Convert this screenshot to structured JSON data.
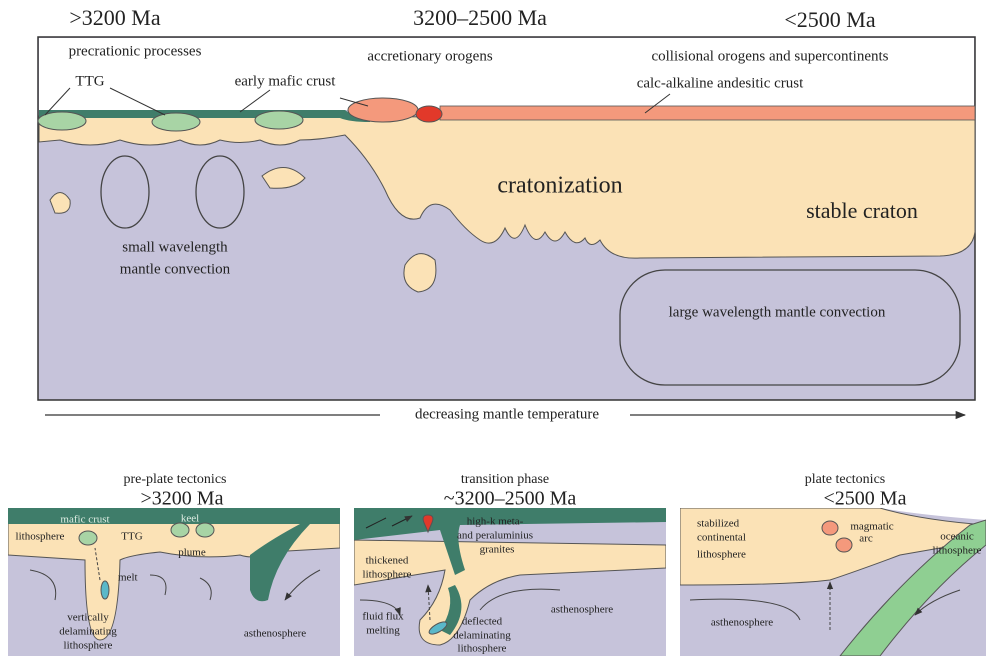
{
  "top_panel": {
    "eras": [
      ">3200 Ma",
      "3200–2500 Ma",
      "<2500 Ma"
    ],
    "labels": {
      "precratonic": "precrationic processes",
      "ttg": "TTG",
      "early_mafic": "early mafic crust",
      "accretionary": "accretionary orogens",
      "collisional": "collisional orogens and supercontinents",
      "calc_alkaline": "calc-alkaline andesitic crust",
      "cratonization": "cratonization",
      "stable_craton": "stable craton",
      "small_convection": [
        "small wavelength",
        "mantle convection"
      ],
      "large_convection": "large wavelength mantle convection"
    },
    "axis_label": "decreasing mantle temperature"
  },
  "bottom_panels": [
    {
      "title": "pre-plate tectonics",
      "age": ">3200 Ma",
      "labels": [
        "mafic crust",
        "keel",
        "lithosphere",
        "TTG",
        "plume",
        "melt",
        "vertically",
        "delaminating",
        "lithosphere",
        "asthenosphere"
      ]
    },
    {
      "title": "transition phase",
      "age": "~3200–2500 Ma",
      "labels": [
        "high-k meta-",
        "and peraluminius",
        "granites",
        "thickened",
        "lithosphere",
        "fluid flux",
        "melting",
        "deflected",
        "delaminating",
        "lithosphere",
        "asthenosphere"
      ]
    },
    {
      "title": "plate tectonics",
      "age": "<2500 Ma",
      "labels": [
        "stabilized",
        "continental",
        "lithosphere",
        "magmatic",
        "arc",
        "oceanic",
        "lithosphere",
        "asthenosphere"
      ]
    }
  ]
}
